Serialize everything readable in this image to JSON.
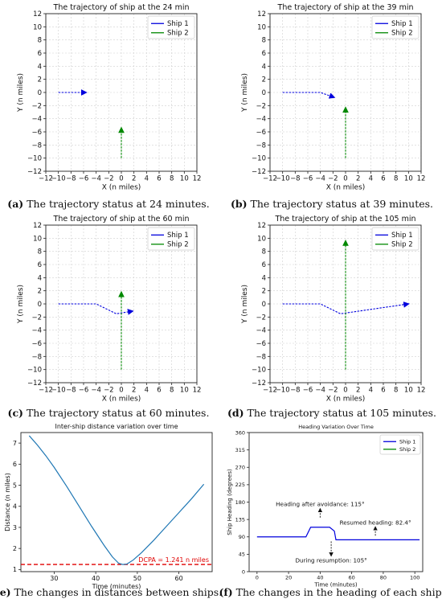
{
  "colors": {
    "ship1": "#0000dd",
    "ship2": "#008800",
    "line": "#1f77b4",
    "dcpa": "#e00000"
  },
  "chart_data": [
    {
      "id": "a",
      "type": "line",
      "title": "The trajectory of ship at the 24 min",
      "xlabel": "X (n miles)",
      "ylabel": "Y (n miles)",
      "xlim": [
        -12,
        12
      ],
      "ylim": [
        -12,
        12
      ],
      "xticks": [
        "−12",
        "−10",
        "−8",
        "−6",
        "−4",
        "−2",
        "0",
        "2",
        "4",
        "6",
        "8",
        "10",
        "12"
      ],
      "yticks": [
        "−12",
        "−10",
        "−8",
        "−6",
        "−4",
        "−2",
        "0",
        "2",
        "4",
        "6",
        "8",
        "10",
        "12"
      ],
      "grid": true,
      "legend": "top-right",
      "series": [
        {
          "name": "Ship 1",
          "color": "ship1",
          "points": [
            [
              -10,
              0
            ],
            [
              -5.6,
              0
            ]
          ]
        },
        {
          "name": "Ship 2",
          "color": "ship2",
          "points": [
            [
              0,
              -10
            ],
            [
              0,
              -5.4
            ]
          ]
        }
      ],
      "caption_letter": "(a)",
      "caption_text": " The trajectory status at 24 minutes."
    },
    {
      "id": "b",
      "type": "line",
      "title": "The trajectory of ship at the 39 min",
      "xlabel": "X (n miles)",
      "ylabel": "Y (n miles)",
      "xlim": [
        -12,
        12
      ],
      "ylim": [
        -12,
        12
      ],
      "xticks": [
        "−12",
        "−10",
        "−8",
        "−6",
        "−4",
        "−2",
        "0",
        "2",
        "4",
        "6",
        "8",
        "10",
        "12"
      ],
      "yticks": [
        "−12",
        "−10",
        "−8",
        "−6",
        "−4",
        "−2",
        "0",
        "2",
        "4",
        "6",
        "8",
        "10",
        "12"
      ],
      "grid": true,
      "legend": "top-right",
      "series": [
        {
          "name": "Ship 1",
          "color": "ship1",
          "points": [
            [
              -10,
              0
            ],
            [
              -4,
              0
            ],
            [
              -1.8,
              -0.75
            ]
          ]
        },
        {
          "name": "Ship 2",
          "color": "ship2",
          "points": [
            [
              0,
              -10
            ],
            [
              0,
              -2.3
            ]
          ]
        }
      ],
      "caption_letter": "(b)",
      "caption_text": " The trajectory status at 39 minutes."
    },
    {
      "id": "c",
      "type": "line",
      "title": "The trajectory of ship at the 60 min",
      "xlabel": "X (n miles)",
      "ylabel": "Y (n miles)",
      "xlim": [
        -12,
        12
      ],
      "ylim": [
        -12,
        12
      ],
      "xticks": [
        "−12",
        "−10",
        "−8",
        "−6",
        "−4",
        "−2",
        "0",
        "2",
        "4",
        "6",
        "8",
        "10",
        "12"
      ],
      "yticks": [
        "−12",
        "−10",
        "−8",
        "−6",
        "−4",
        "−2",
        "0",
        "2",
        "4",
        "6",
        "8",
        "10",
        "12"
      ],
      "grid": true,
      "legend": "top-right",
      "series": [
        {
          "name": "Ship 1",
          "color": "ship1",
          "points": [
            [
              -10,
              0
            ],
            [
              -4,
              0
            ],
            [
              -0.8,
              -1.5
            ],
            [
              1.8,
              -1.1
            ]
          ]
        },
        {
          "name": "Ship 2",
          "color": "ship2",
          "points": [
            [
              0,
              -10
            ],
            [
              0,
              1.8
            ]
          ]
        }
      ],
      "caption_letter": "(c)",
      "caption_text": " The trajectory status at 60 minutes."
    },
    {
      "id": "d",
      "type": "line",
      "title": "The trajectory of ship at the 105 min",
      "xlabel": "X (n miles)",
      "ylabel": "Y (n miles)",
      "xlim": [
        -12,
        12
      ],
      "ylim": [
        -12,
        12
      ],
      "xticks": [
        "−12",
        "−10",
        "−8",
        "−6",
        "−4",
        "−2",
        "0",
        "2",
        "4",
        "6",
        "8",
        "10",
        "12"
      ],
      "yticks": [
        "−12",
        "−10",
        "−8",
        "−6",
        "−4",
        "−2",
        "0",
        "2",
        "4",
        "6",
        "8",
        "10",
        "12"
      ],
      "grid": true,
      "legend": "top-right",
      "series": [
        {
          "name": "Ship 1",
          "color": "ship1",
          "points": [
            [
              -10,
              0
            ],
            [
              -4,
              0
            ],
            [
              -0.8,
              -1.5
            ],
            [
              10,
              0
            ]
          ]
        },
        {
          "name": "Ship 2",
          "color": "ship2",
          "points": [
            [
              0,
              -10
            ],
            [
              0,
              9.6
            ]
          ]
        }
      ],
      "caption_letter": "(d)",
      "caption_text": " The trajectory status at 105 minutes."
    },
    {
      "id": "e",
      "type": "line",
      "title": "Inter-ship distance variation over time",
      "xlabel": "Time (minutes)",
      "ylabel": "Distance (n miles)",
      "xlim": [
        22,
        68
      ],
      "ylim": [
        0.9,
        7.5
      ],
      "xticks": [
        "30",
        "40",
        "50",
        "60"
      ],
      "yticks": [
        "1",
        "2",
        "3",
        "4",
        "5",
        "6",
        "7"
      ],
      "grid": false,
      "series": [
        {
          "name": "",
          "color": "line",
          "points": [
            [
              24,
              7.35
            ],
            [
              26,
              6.9
            ],
            [
              28,
              6.4
            ],
            [
              30,
              5.85
            ],
            [
              33,
              4.95
            ],
            [
              36,
              4.0
            ],
            [
              39,
              3.05
            ],
            [
              42,
              2.15
            ],
            [
              44,
              1.6
            ],
            [
              45.5,
              1.3
            ],
            [
              46.5,
              1.24
            ],
            [
              47.5,
              1.26
            ],
            [
              49,
              1.45
            ],
            [
              51,
              1.8
            ],
            [
              54,
              2.4
            ],
            [
              57,
              3.05
            ],
            [
              60,
              3.7
            ],
            [
              63,
              4.35
            ],
            [
              66,
              5.05
            ]
          ]
        }
      ],
      "reference_line": {
        "value": 1.241,
        "label": "DCPA = 1.241 n miles"
      },
      "caption_letter": "(e)",
      "caption_text": " The changes in distances between ships."
    },
    {
      "id": "f",
      "type": "line",
      "title": "Heading Variation Over Time",
      "xlabel": "Time (minutes)",
      "ylabel": "Ship Heading (degrees)",
      "xlim": [
        -5,
        105
      ],
      "ylim": [
        0,
        360
      ],
      "xticks": [
        "0",
        "20",
        "40",
        "60",
        "80",
        "100"
      ],
      "yticks": [
        "0",
        "45",
        "90",
        "135",
        "180",
        "225",
        "270",
        "315",
        "360"
      ],
      "grid": false,
      "legend": "top-right",
      "series": [
        {
          "name": "Ship 1",
          "color": "ship1",
          "points": [
            [
              0,
              90
            ],
            [
              31,
              90
            ],
            [
              34,
              115
            ],
            [
              46,
              115
            ],
            [
              49,
              105
            ],
            [
              50,
              82.4
            ],
            [
              103,
              82.4
            ]
          ]
        },
        {
          "name": "Ship 2",
          "color": "ship2",
          "points": []
        }
      ],
      "annotations": [
        {
          "text": "Heading after avoidance: 115°",
          "x": 40,
          "y": 165,
          "arrow": "up"
        },
        {
          "text": "Resumed heading: 82.4°",
          "x": 75,
          "y": 118,
          "arrow": "up"
        },
        {
          "text": "During resumption: 105°",
          "x": 47,
          "y": 45,
          "arrow": "down"
        }
      ],
      "caption_letter": "(f)",
      "caption_text": " The changes in the heading of each ship."
    }
  ]
}
